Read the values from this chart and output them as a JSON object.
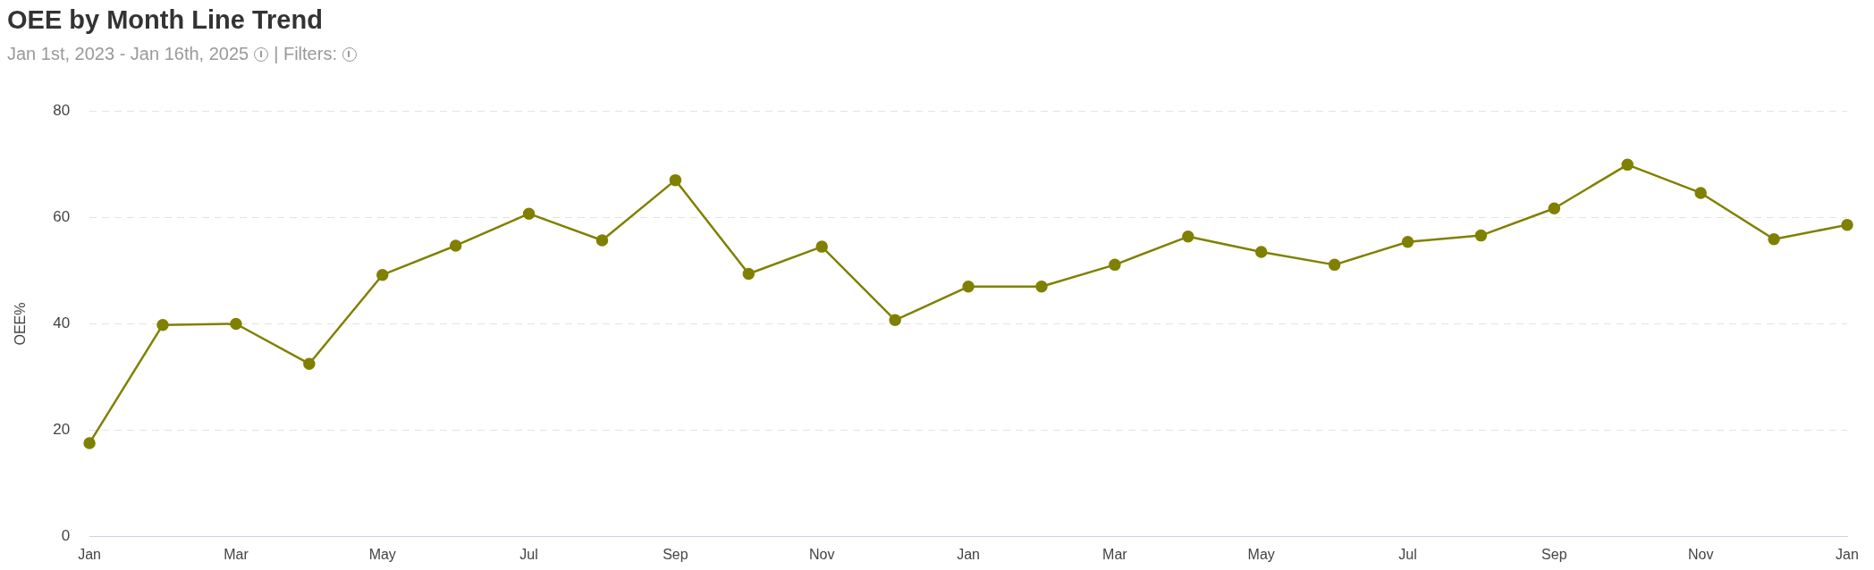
{
  "chart_data": {
    "type": "line",
    "title": "OEE by Month Line Trend",
    "subtitle": "Jan 1st, 2023 - Jan 16th, 2025",
    "annotations": [
      "| Filters:"
    ],
    "ylabel": "OEE%",
    "categories": [
      "Jan",
      null,
      "Mar",
      null,
      "May",
      null,
      "Jul",
      null,
      "Sep",
      null,
      "Nov",
      null,
      "Jan",
      null,
      "Mar",
      null,
      "May",
      null,
      "Jul",
      null,
      "Sep",
      null,
      "Nov",
      null,
      "Jan"
    ],
    "series": [
      {
        "color": "#808000",
        "values": [
          17.6,
          39.8,
          40,
          32.5,
          49.2,
          54.7,
          60.7,
          55.7,
          67,
          49.4,
          54.5,
          40.7,
          47,
          47,
          51.1,
          56.4,
          53.5,
          51.1,
          55.4,
          56.6,
          61.7,
          69.9,
          64.6,
          55.9,
          58.6
        ]
      }
    ],
    "ylim": [
      0,
      80
    ],
    "yticks": [
      0,
      20,
      40,
      60,
      80
    ],
    "grid": "y",
    "legend": false,
    "marker": "circle",
    "line_style": "solid"
  }
}
